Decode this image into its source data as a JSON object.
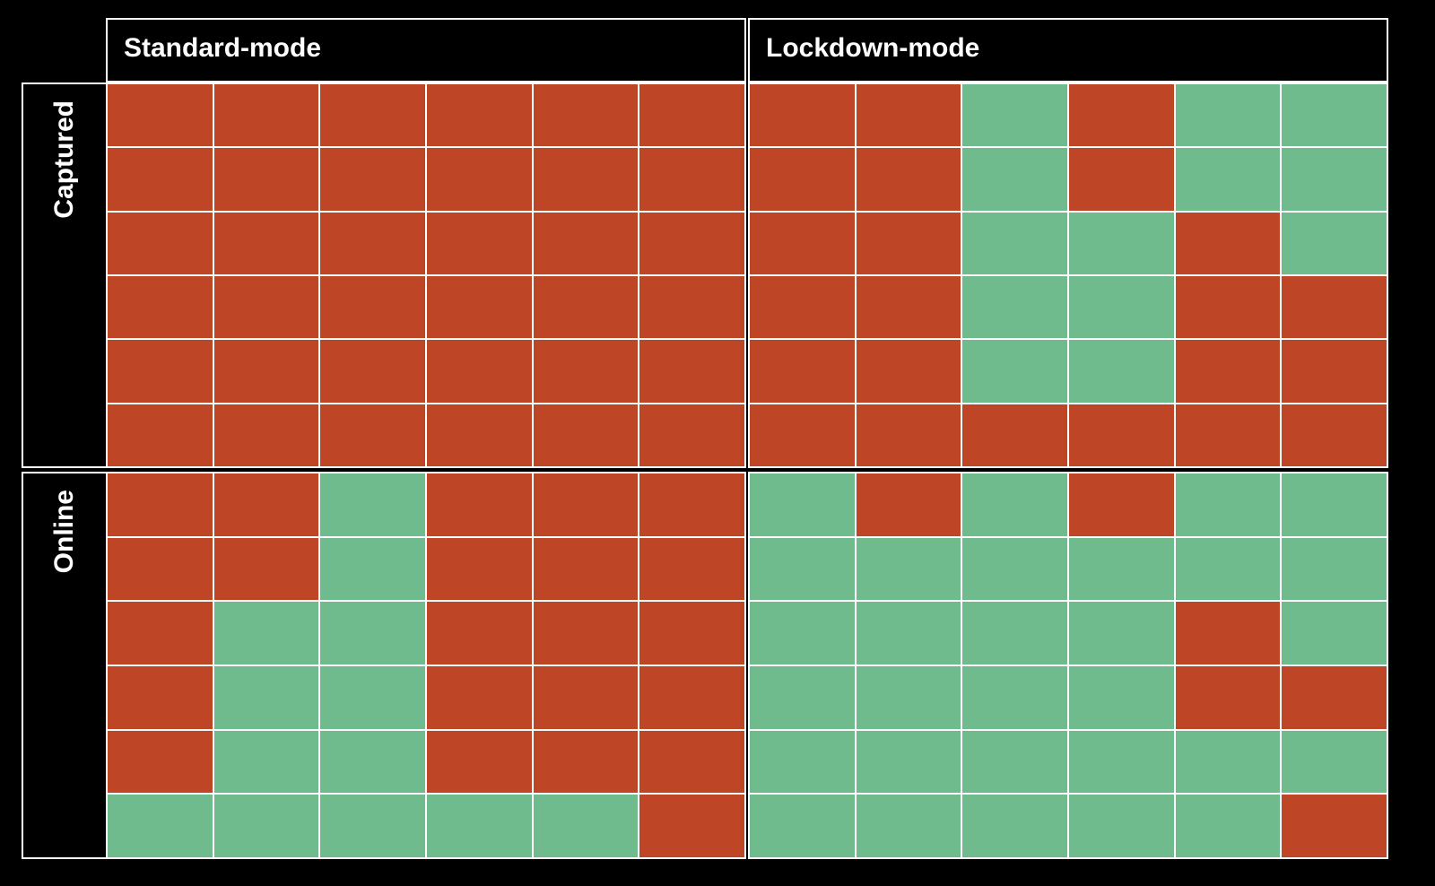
{
  "chart_data": {
    "type": "heatmap",
    "columns": [
      "Standard-mode",
      "Lockdown-mode"
    ],
    "rows": [
      "Captured",
      "Online"
    ],
    "colors": {
      "red": "#bf4527",
      "green": "#6fbb8d",
      "background": "#000000",
      "grid": "#ffffff"
    },
    "cells": {
      "Captured": {
        "Standard-mode": [
          [
            "red",
            "red",
            "red",
            "red",
            "red",
            "red"
          ],
          [
            "red",
            "red",
            "red",
            "red",
            "red",
            "red"
          ],
          [
            "red",
            "red",
            "red",
            "red",
            "red",
            "red"
          ],
          [
            "red",
            "red",
            "red",
            "red",
            "red",
            "red"
          ],
          [
            "red",
            "red",
            "red",
            "red",
            "red",
            "red"
          ],
          [
            "red",
            "red",
            "red",
            "red",
            "red",
            "red"
          ]
        ],
        "Lockdown-mode": [
          [
            "red",
            "red",
            "green",
            "red",
            "green",
            "green"
          ],
          [
            "red",
            "red",
            "green",
            "red",
            "green",
            "green"
          ],
          [
            "red",
            "red",
            "green",
            "green",
            "red",
            "green"
          ],
          [
            "red",
            "red",
            "green",
            "green",
            "red",
            "red"
          ],
          [
            "red",
            "red",
            "green",
            "green",
            "red",
            "red"
          ],
          [
            "red",
            "red",
            "red",
            "red",
            "red",
            "red"
          ]
        ]
      },
      "Online": {
        "Standard-mode": [
          [
            "red",
            "red",
            "green",
            "red",
            "red",
            "red"
          ],
          [
            "red",
            "red",
            "green",
            "red",
            "red",
            "red"
          ],
          [
            "red",
            "green",
            "green",
            "red",
            "red",
            "red"
          ],
          [
            "red",
            "green",
            "green",
            "red",
            "red",
            "red"
          ],
          [
            "red",
            "green",
            "green",
            "red",
            "red",
            "red"
          ],
          [
            "green",
            "green",
            "green",
            "green",
            "green",
            "red"
          ]
        ],
        "Lockdown-mode": [
          [
            "green",
            "red",
            "green",
            "red",
            "green",
            "green"
          ],
          [
            "green",
            "green",
            "green",
            "green",
            "green",
            "green"
          ],
          [
            "green",
            "green",
            "green",
            "green",
            "red",
            "green"
          ],
          [
            "green",
            "green",
            "green",
            "green",
            "red",
            "red"
          ],
          [
            "green",
            "green",
            "green",
            "green",
            "green",
            "green"
          ],
          [
            "green",
            "green",
            "green",
            "green",
            "green",
            "red"
          ]
        ]
      }
    }
  }
}
